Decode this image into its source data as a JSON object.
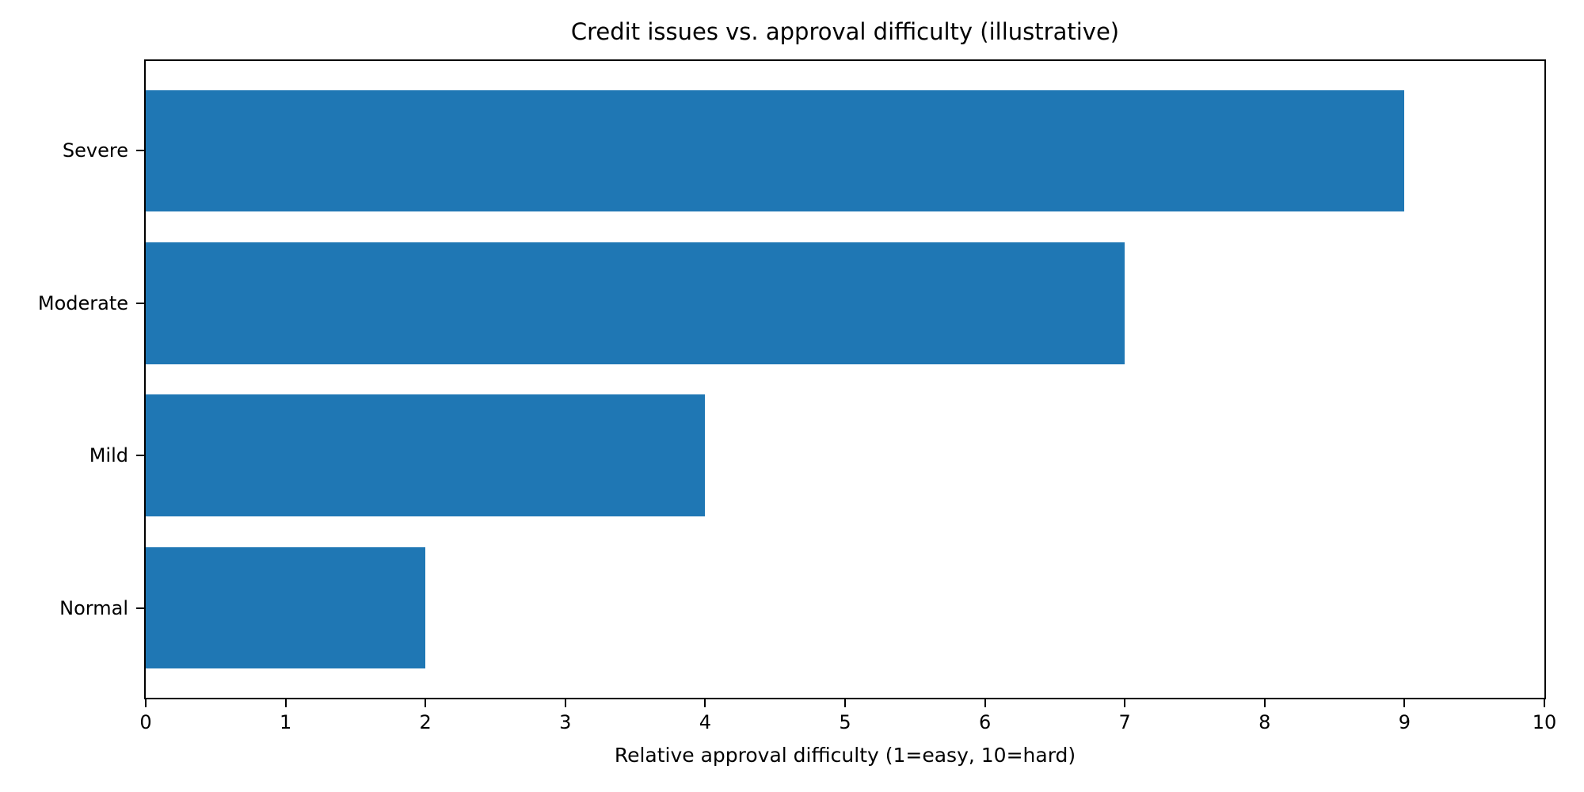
{
  "chart_data": {
    "type": "bar",
    "orientation": "horizontal",
    "title": "Credit issues vs. approval difficulty (illustrative)",
    "xlabel": "Relative approval difficulty (1=easy, 10=hard)",
    "ylabel": "",
    "categories": [
      "Severe",
      "Moderate",
      "Mild",
      "Normal"
    ],
    "values": [
      9,
      7,
      4,
      2
    ],
    "xlim": [
      0,
      10
    ],
    "xticks": [
      0,
      1,
      2,
      3,
      4,
      5,
      6,
      7,
      8,
      9,
      10
    ],
    "bar_color": "#1f77b4",
    "axis_color": "#000000",
    "background_color": "#ffffff",
    "grid": false,
    "legend": "none",
    "bar_height_fraction": 0.8
  }
}
